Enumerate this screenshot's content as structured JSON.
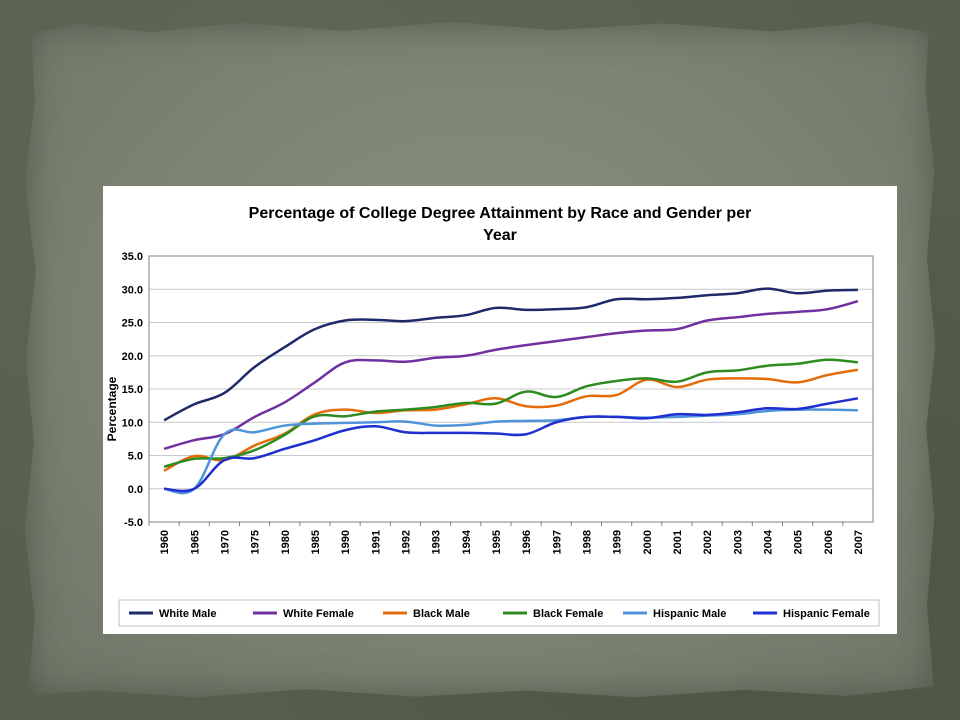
{
  "chart_data": {
    "type": "line",
    "title_lines": [
      "Percentage of College Degree Attainment by Race and Gender per",
      "Year"
    ],
    "xlabel": "",
    "ylabel": "Percentage",
    "ylim": [
      -5.0,
      35.0
    ],
    "y_ticks": [
      "-5.0",
      "0.0",
      "5.0",
      "10.0",
      "15.0",
      "20.0",
      "25.0",
      "30.0",
      "35.0"
    ],
    "grid": "horizontal",
    "legend_position": "bottom",
    "categories": [
      "1960",
      "1965",
      "1970",
      "1975",
      "1980",
      "1985",
      "1990",
      "1991",
      "1992",
      "1993",
      "1994",
      "1995",
      "1996",
      "1997",
      "1998",
      "1999",
      "2000",
      "2001",
      "2002",
      "2003",
      "2004",
      "2005",
      "2006",
      "2007"
    ],
    "series": [
      {
        "name": "White Male",
        "color": "#1f2a6b",
        "values": [
          10.3,
          12.7,
          14.4,
          18.3,
          21.3,
          24.0,
          25.3,
          25.4,
          25.2,
          25.7,
          26.1,
          27.2,
          26.9,
          27.0,
          27.3,
          28.5,
          28.5,
          28.7,
          29.1,
          29.4,
          30.1,
          29.4,
          29.8,
          29.9
        ]
      },
      {
        "name": "White Female",
        "color": "#7030a0",
        "values": [
          6.0,
          7.3,
          8.2,
          10.8,
          13.0,
          16.0,
          19.0,
          19.3,
          19.1,
          19.7,
          20.0,
          20.9,
          21.6,
          22.2,
          22.8,
          23.4,
          23.8,
          24.0,
          25.3,
          25.8,
          26.3,
          26.6,
          27.0,
          28.2
        ]
      },
      {
        "name": "Black Male",
        "color": "#e46c0a",
        "values": [
          2.7,
          4.9,
          4.3,
          6.5,
          8.3,
          11.2,
          11.9,
          11.4,
          11.8,
          11.9,
          12.7,
          13.6,
          12.4,
          12.5,
          13.9,
          14.1,
          16.4,
          15.3,
          16.4,
          16.6,
          16.5,
          16.0,
          17.1,
          17.9
        ]
      },
      {
        "name": "Black Female",
        "color": "#2e8b1f",
        "values": [
          3.3,
          4.5,
          4.6,
          5.8,
          8.1,
          10.9,
          10.9,
          11.6,
          11.9,
          12.3,
          12.9,
          12.8,
          14.6,
          13.8,
          15.4,
          16.2,
          16.6,
          16.1,
          17.5,
          17.8,
          18.5,
          18.8,
          19.4,
          19.0
        ]
      },
      {
        "name": "Hispanic Male",
        "color": "#4f94d9",
        "values": [
          0.0,
          0.0,
          8.2,
          8.5,
          9.5,
          9.8,
          9.9,
          10.0,
          10.1,
          9.5,
          9.6,
          10.1,
          10.2,
          10.3,
          10.8,
          10.8,
          10.7,
          10.8,
          11.0,
          11.2,
          11.7,
          11.9,
          11.9,
          11.8
        ]
      },
      {
        "name": "Hispanic Female",
        "color": "#1f2fd0",
        "values": [
          0.0,
          0.0,
          4.3,
          4.6,
          6.0,
          7.3,
          8.8,
          9.4,
          8.5,
          8.4,
          8.4,
          8.3,
          8.2,
          10.0,
          10.8,
          10.8,
          10.6,
          11.2,
          11.1,
          11.5,
          12.1,
          12.0,
          12.8,
          13.6
        ]
      }
    ]
  }
}
